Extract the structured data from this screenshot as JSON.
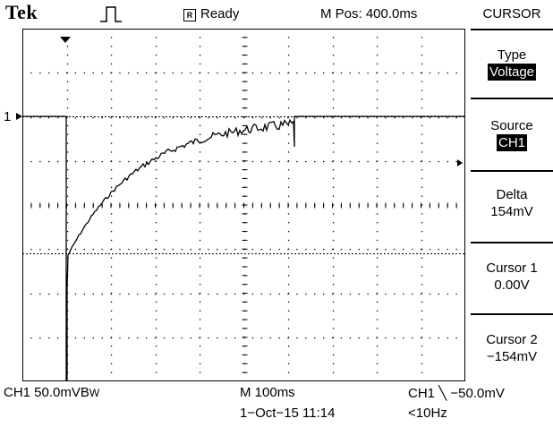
{
  "header": {
    "brand": "Tek",
    "trigger_icon": "pulse-trigger-icon",
    "acq_state_badge": "R",
    "acq_state": "Ready",
    "m_pos": "M Pos: 400.0ms"
  },
  "menu": {
    "title": "CURSOR",
    "items": [
      {
        "label": "Type",
        "value": "Voltage",
        "highlight": true
      },
      {
        "label": "Source",
        "value": "CH1",
        "highlight": true
      },
      {
        "label": "Delta",
        "value": "154mV",
        "highlight": false
      },
      {
        "label": "Cursor 1",
        "value": "0.00V",
        "highlight": false
      },
      {
        "label": "Cursor 2",
        "value": "−154mV",
        "highlight": false
      }
    ]
  },
  "channel_marker": "1",
  "footer": {
    "ch1_scale": "CH1  50.0mVB",
    "bw_suffix": "W",
    "timebase": "M 100ms",
    "trigger": "CH1 ╲ −50.0mV",
    "date_time": "1−Oct−15 11:14",
    "freq": "<10Hz"
  },
  "colors": {
    "background": "#ffffff",
    "foreground": "#000000"
  }
}
